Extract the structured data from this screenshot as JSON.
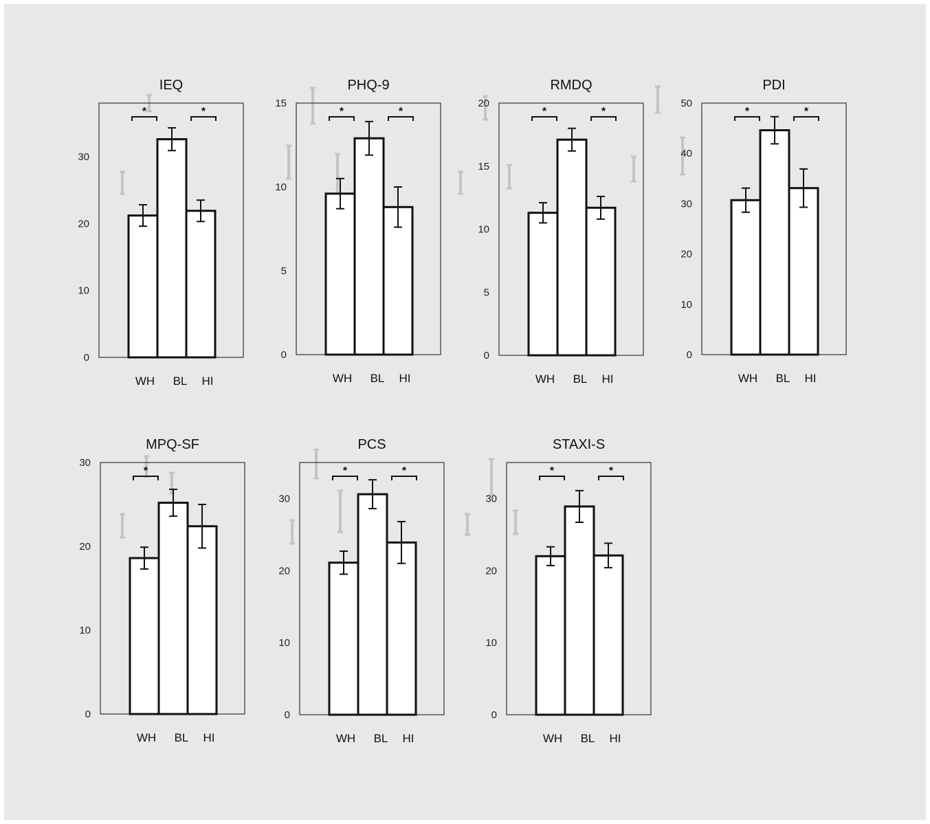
{
  "colors": {
    "background": "#e8e8e8",
    "bar_fill": "#ffffff",
    "bar_stroke": "#111111",
    "frame": "#333333",
    "ghost": "#c4c4c4"
  },
  "chart_data": [
    {
      "type": "bar",
      "title": "IEQ",
      "categories": [
        "WH",
        "BL",
        "HI"
      ],
      "values": [
        21.2,
        32.6,
        21.9
      ],
      "error": [
        1.6,
        1.7,
        1.6
      ],
      "yticks": [
        0,
        10,
        20,
        30
      ],
      "ylim": [
        0,
        38
      ],
      "significance": [
        {
          "pair": [
            "WH",
            "BL"
          ],
          "label": "*"
        },
        {
          "pair": [
            "BL",
            "HI"
          ],
          "label": "*"
        }
      ]
    },
    {
      "type": "bar",
      "title": "PHQ-9",
      "categories": [
        "WH",
        "BL",
        "HI"
      ],
      "values": [
        9.6,
        12.9,
        8.8
      ],
      "error": [
        0.9,
        1.0,
        1.2
      ],
      "yticks": [
        0,
        5,
        10,
        15
      ],
      "ylim": [
        0,
        15
      ],
      "significance": [
        {
          "pair": [
            "WH",
            "BL"
          ],
          "label": "*"
        },
        {
          "pair": [
            "BL",
            "HI"
          ],
          "label": "*"
        }
      ]
    },
    {
      "type": "bar",
      "title": "RMDQ",
      "categories": [
        "WH",
        "BL",
        "HI"
      ],
      "values": [
        11.3,
        17.1,
        11.7
      ],
      "error": [
        0.8,
        0.9,
        0.9
      ],
      "yticks": [
        0,
        5,
        10,
        15,
        20
      ],
      "ylim": [
        0,
        20
      ],
      "significance": [
        {
          "pair": [
            "WH",
            "BL"
          ],
          "label": "*"
        },
        {
          "pair": [
            "BL",
            "HI"
          ],
          "label": "*"
        }
      ]
    },
    {
      "type": "bar",
      "title": "PDI",
      "categories": [
        "WH",
        "BL",
        "HI"
      ],
      "values": [
        30.7,
        44.6,
        33.1
      ],
      "error": [
        2.4,
        2.7,
        3.8
      ],
      "yticks": [
        0,
        10,
        20,
        30,
        40,
        50
      ],
      "ylim": [
        0,
        50
      ],
      "significance": [
        {
          "pair": [
            "WH",
            "BL"
          ],
          "label": "*"
        },
        {
          "pair": [
            "BL",
            "HI"
          ],
          "label": "*"
        }
      ]
    },
    {
      "type": "bar",
      "title": "MPQ-SF",
      "categories": [
        "WH",
        "BL",
        "HI"
      ],
      "values": [
        18.6,
        25.2,
        22.4
      ],
      "error": [
        1.3,
        1.6,
        2.6
      ],
      "yticks": [
        0,
        10,
        20,
        30
      ],
      "ylim": [
        0,
        30
      ],
      "significance": [
        {
          "pair": [
            "WH",
            "BL"
          ],
          "label": "*"
        }
      ]
    },
    {
      "type": "bar",
      "title": "PCS",
      "categories": [
        "WH",
        "BL",
        "HI"
      ],
      "values": [
        21.1,
        30.6,
        23.9
      ],
      "error": [
        1.6,
        2.0,
        2.9
      ],
      "yticks": [
        0,
        10,
        20,
        30
      ],
      "ylim": [
        0,
        35
      ],
      "significance": [
        {
          "pair": [
            "WH",
            "BL"
          ],
          "label": "*"
        },
        {
          "pair": [
            "BL",
            "HI"
          ],
          "label": "*"
        }
      ]
    },
    {
      "type": "bar",
      "title": "STAXI-S",
      "categories": [
        "WH",
        "BL",
        "HI"
      ],
      "values": [
        22.0,
        28.9,
        22.1
      ],
      "error": [
        1.3,
        2.2,
        1.7
      ],
      "yticks": [
        0,
        10,
        20,
        30
      ],
      "ylim": [
        0,
        35
      ],
      "significance": [
        {
          "pair": [
            "WH",
            "BL"
          ],
          "label": "*"
        },
        {
          "pair": [
            "BL",
            "HI"
          ],
          "label": "*"
        }
      ]
    }
  ]
}
